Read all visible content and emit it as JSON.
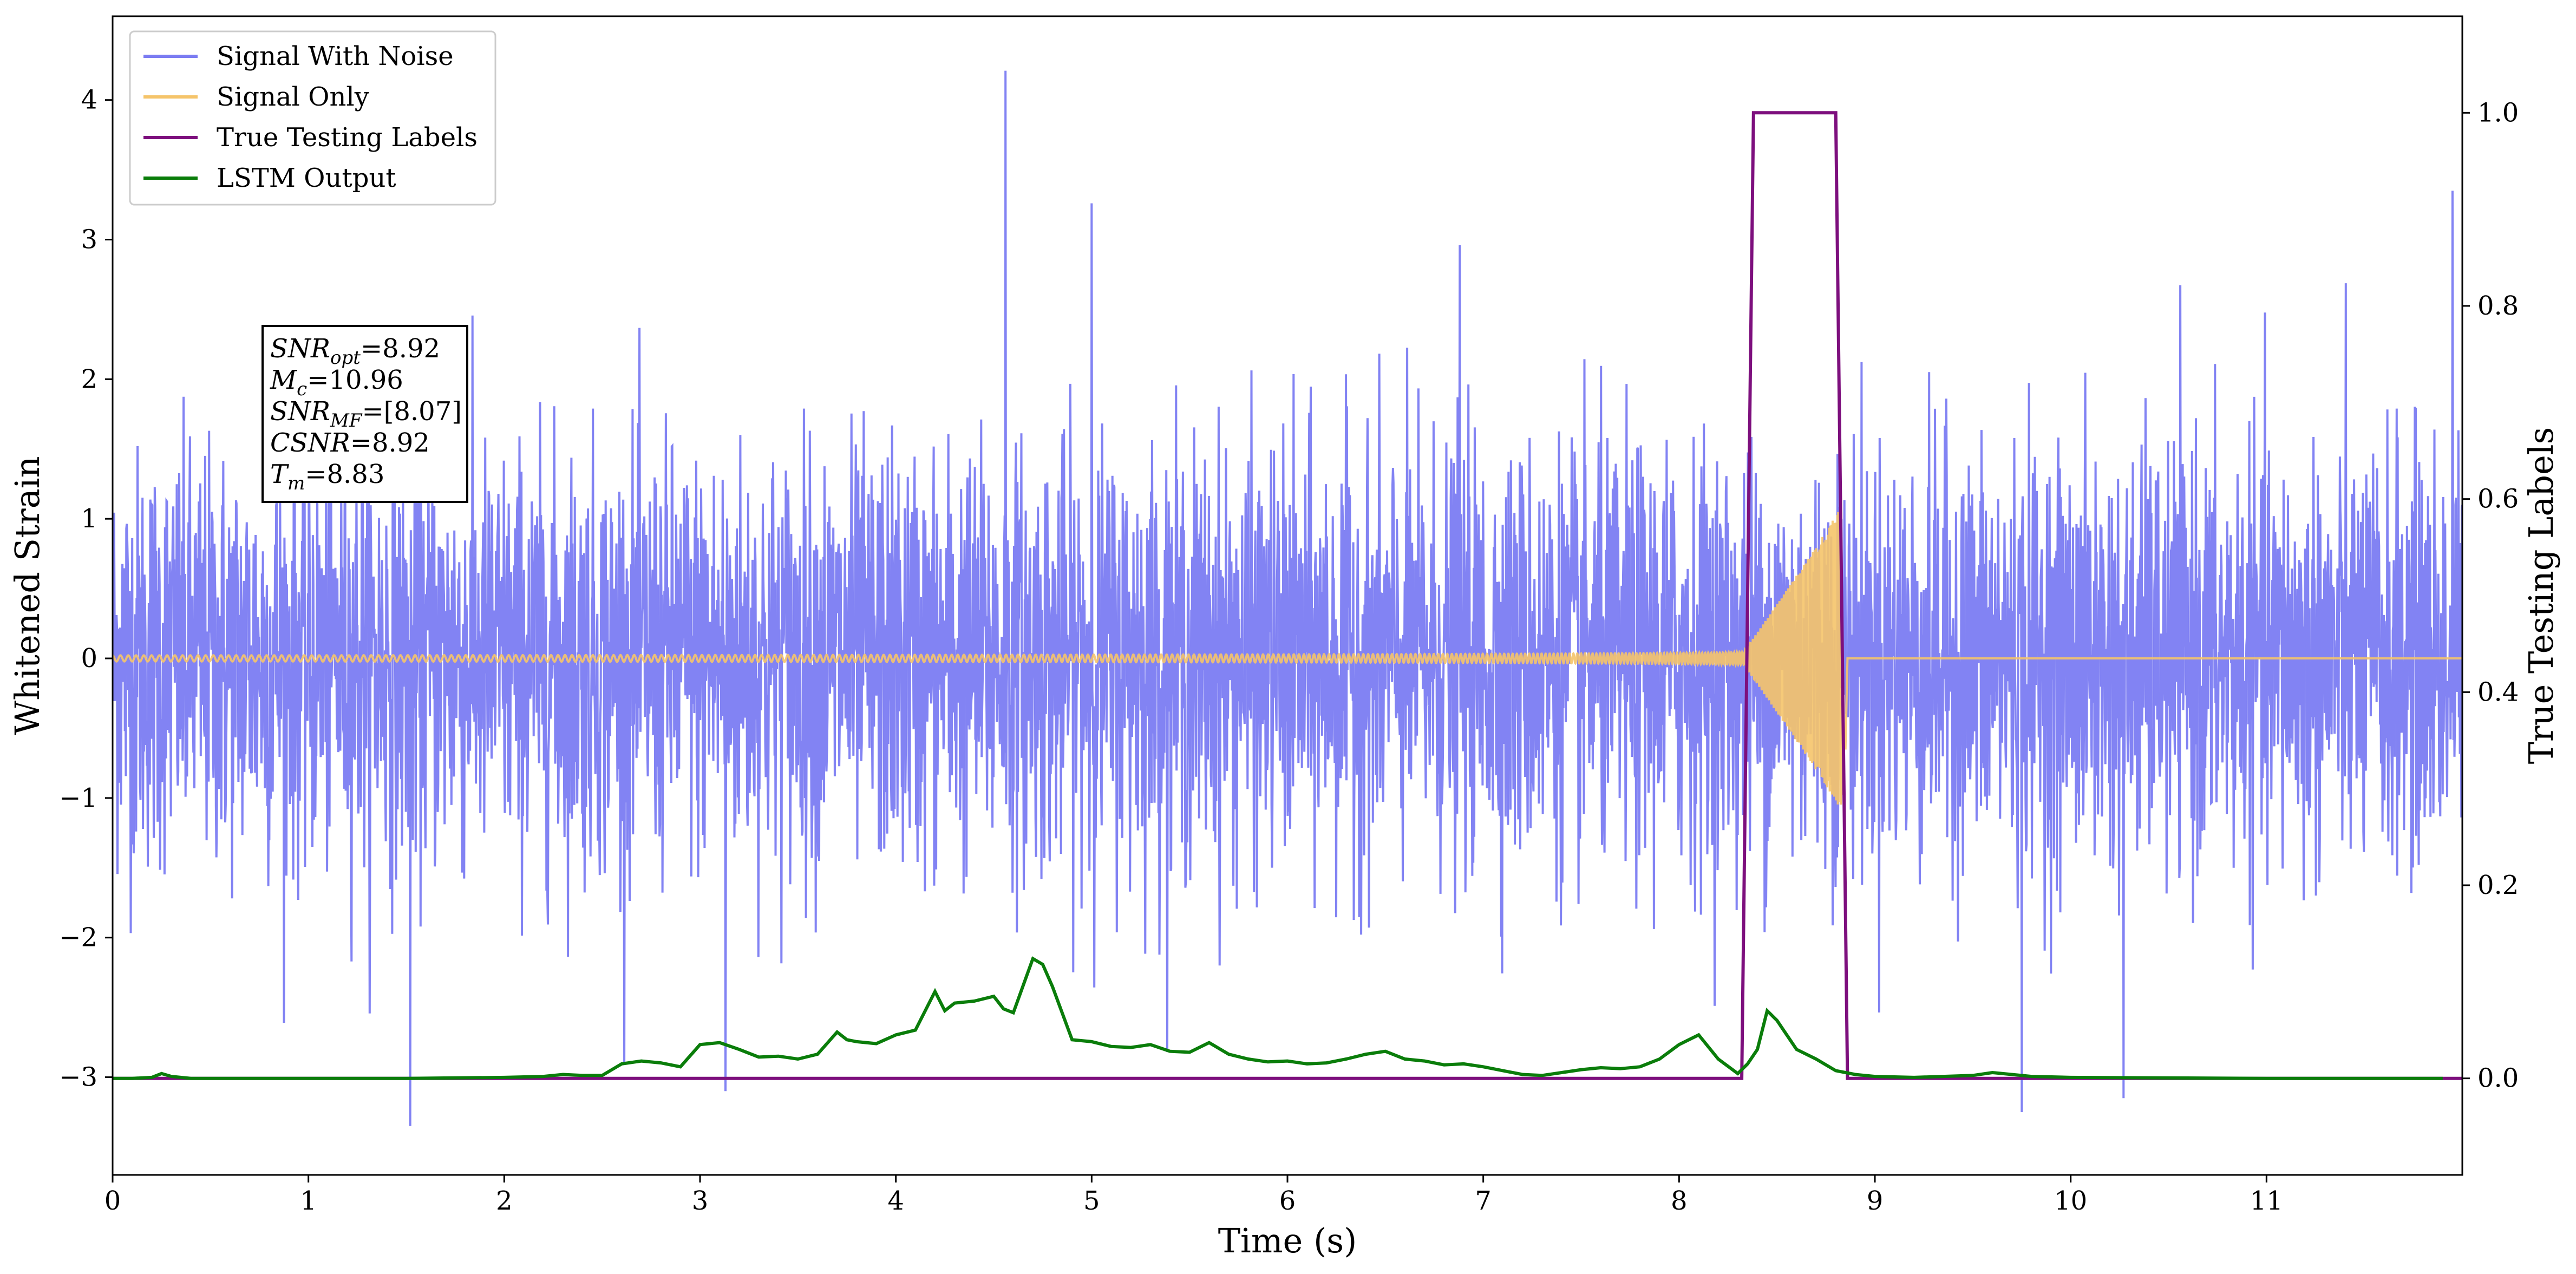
{
  "chart_data": {
    "type": "line",
    "xlabel": "Time (s)",
    "ylabel": "Whitened Strain",
    "y2label": "True Testing Labels",
    "xlim": [
      0,
      12
    ],
    "ylim": [
      -3.7,
      4.6
    ],
    "y2lim": [
      -0.1,
      1.1
    ],
    "x_ticks": [
      0,
      1,
      2,
      3,
      4,
      5,
      6,
      7,
      8,
      9,
      10,
      11
    ],
    "x_tick_labels": [
      "0",
      "1",
      "2",
      "3",
      "4",
      "5",
      "6",
      "7",
      "8",
      "9",
      "10",
      "11"
    ],
    "y_ticks": [
      -3,
      -2,
      -1,
      0,
      1,
      2,
      3,
      4
    ],
    "y_tick_labels": [
      "−3",
      "−2",
      "−1",
      "0",
      "1",
      "2",
      "3",
      "4"
    ],
    "y2_ticks": [
      0.0,
      0.2,
      0.4,
      0.6,
      0.8,
      1.0
    ],
    "y2_tick_labels": [
      "0.0",
      "0.2",
      "0.4",
      "0.6",
      "0.8",
      "1.0"
    ],
    "grid": false,
    "legend_position": "top-left",
    "series": [
      {
        "name": "Signal With Noise",
        "axis": "left",
        "color": "#7b7cf2",
        "kind": "gaussian-noise",
        "std": 0.75,
        "x_range": [
          0,
          12
        ],
        "samples": 4800,
        "notable_spikes": [
          {
            "x": 4.56,
            "y": 4.21
          },
          {
            "x": 5.0,
            "y": 3.26
          },
          {
            "x": 6.88,
            "y": 2.96
          },
          {
            "x": 1.52,
            "y": -3.35
          },
          {
            "x": 3.13,
            "y": -3.1
          },
          {
            "x": 9.75,
            "y": -3.25
          },
          {
            "x": 10.27,
            "y": -3.15
          },
          {
            "x": 11.95,
            "y": 3.35
          }
        ]
      },
      {
        "name": "Signal Only",
        "axis": "left",
        "color": "#f5c46a",
        "kind": "chirp",
        "start": 0,
        "merger_time": 8.83,
        "end_time": 8.85,
        "amplitude_start": 0.04,
        "amplitude_peak": 1.05,
        "frequency_start_hz": 25
      },
      {
        "name": "True Testing Labels",
        "axis": "right",
        "color": "#7d0f7d",
        "x": [
          0,
          8.32,
          8.38,
          8.8,
          8.86,
          12
        ],
        "y": [
          0,
          0,
          1,
          1,
          0,
          0
        ]
      },
      {
        "name": "LSTM Output",
        "axis": "right",
        "color": "#0a7d0a",
        "x": [
          0,
          0.1,
          0.2,
          0.25,
          0.3,
          0.4,
          0.5,
          1.0,
          1.5,
          2.0,
          2.2,
          2.3,
          2.4,
          2.5,
          2.6,
          2.7,
          2.8,
          2.9,
          3.0,
          3.1,
          3.2,
          3.3,
          3.4,
          3.5,
          3.6,
          3.7,
          3.75,
          3.8,
          3.9,
          4.0,
          4.1,
          4.2,
          4.25,
          4.3,
          4.4,
          4.5,
          4.55,
          4.6,
          4.7,
          4.75,
          4.8,
          4.9,
          5.0,
          5.1,
          5.2,
          5.3,
          5.4,
          5.5,
          5.6,
          5.7,
          5.8,
          5.9,
          6.0,
          6.1,
          6.2,
          6.3,
          6.4,
          6.5,
          6.6,
          6.7,
          6.8,
          6.9,
          7.0,
          7.1,
          7.2,
          7.3,
          7.4,
          7.5,
          7.6,
          7.7,
          7.8,
          7.9,
          8.0,
          8.1,
          8.2,
          8.3,
          8.35,
          8.4,
          8.45,
          8.5,
          8.6,
          8.7,
          8.8,
          8.9,
          9.0,
          9.2,
          9.5,
          9.6,
          9.8,
          10.0,
          11.0,
          11.9
        ],
        "y": [
          0.0,
          0.0,
          0.001,
          0.005,
          0.002,
          0.0,
          0.0,
          0.0,
          0.0,
          0.001,
          0.002,
          0.004,
          0.003,
          0.003,
          0.015,
          0.018,
          0.016,
          0.012,
          0.035,
          0.037,
          0.03,
          0.022,
          0.023,
          0.02,
          0.025,
          0.048,
          0.04,
          0.038,
          0.036,
          0.045,
          0.05,
          0.09,
          0.07,
          0.078,
          0.08,
          0.085,
          0.072,
          0.068,
          0.124,
          0.118,
          0.095,
          0.04,
          0.038,
          0.033,
          0.032,
          0.035,
          0.028,
          0.027,
          0.037,
          0.025,
          0.02,
          0.017,
          0.018,
          0.015,
          0.016,
          0.02,
          0.025,
          0.028,
          0.02,
          0.018,
          0.014,
          0.015,
          0.012,
          0.008,
          0.004,
          0.003,
          0.006,
          0.009,
          0.011,
          0.01,
          0.012,
          0.02,
          0.035,
          0.045,
          0.02,
          0.005,
          0.015,
          0.03,
          0.07,
          0.06,
          0.03,
          0.02,
          0.008,
          0.004,
          0.002,
          0.001,
          0.003,
          0.006,
          0.002,
          0.001,
          0.0,
          0.0
        ]
      }
    ],
    "annotation": {
      "lines": [
        {
          "symbol": "SNR",
          "sub": "opt",
          "value": "=8.92"
        },
        {
          "symbol": "M",
          "sub": "c",
          "value": "=10.96"
        },
        {
          "symbol": "SNR",
          "sub": "MF",
          "value": "=[8.07]"
        },
        {
          "symbol": "CSNR",
          "sub": "",
          "value": "=8.92"
        },
        {
          "symbol": "T",
          "sub": "m",
          "value": "=8.83"
        }
      ]
    }
  }
}
